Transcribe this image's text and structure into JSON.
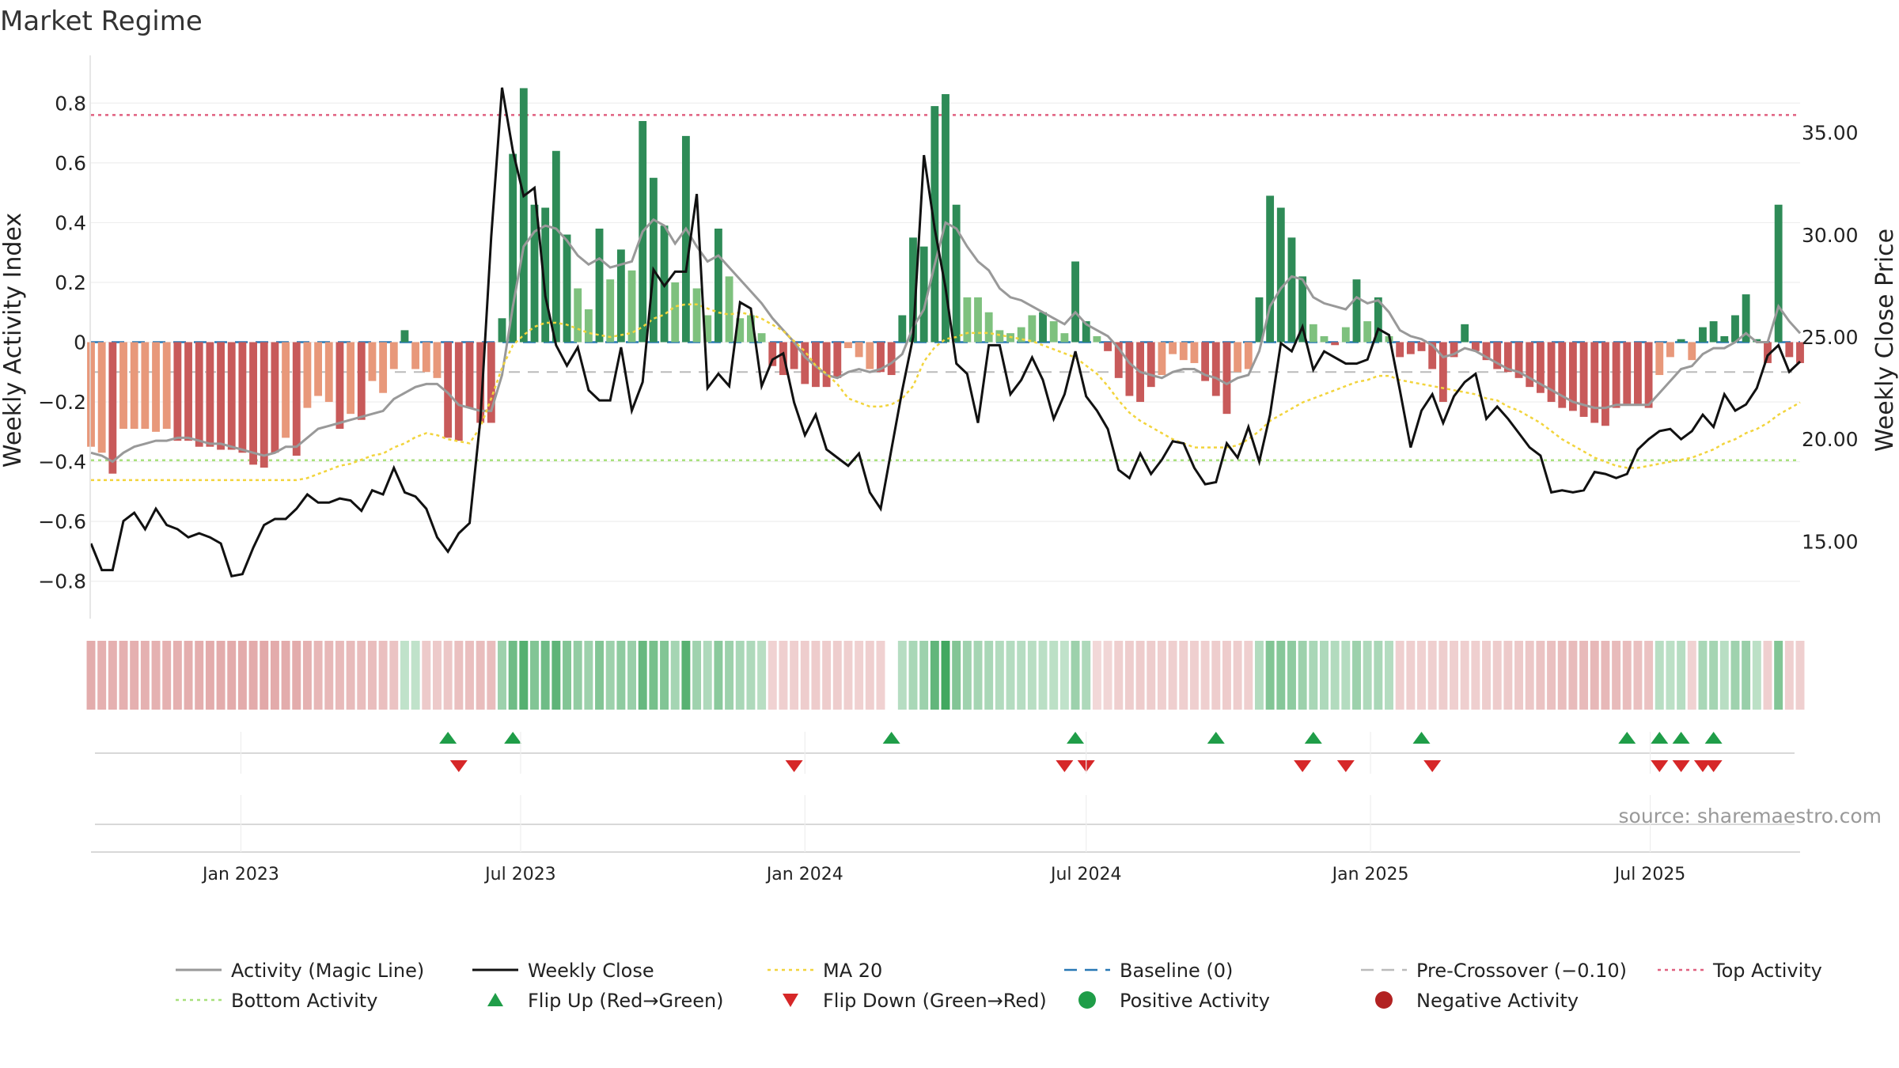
{
  "chart_data": {
    "type": "bar",
    "title": "Market Regime",
    "ylabel_left": "Weekly Activity Index",
    "ylabel_right": "Weekly Close Price",
    "ylim_left": [
      -0.92,
      0.92
    ],
    "ylim_right": [
      11.3,
      38.2
    ],
    "left_ticks": [
      "0.8",
      "0.6",
      "0.4",
      "0.2",
      "0",
      "−0.2",
      "−0.4",
      "−0.6",
      "−0.8"
    ],
    "right_ticks": [
      "35.00",
      "30.00",
      "25.00",
      "20.00",
      "15.00"
    ],
    "x_start": "2022-09-26",
    "x_step_days": 7,
    "x_tick_labels": [
      "Jan 2023",
      "Jul 2023",
      "Jan 2024",
      "Jul 2024",
      "Jan 2025",
      "Jul 2025"
    ],
    "x_tick_dates": [
      "2023-01-01",
      "2023-07-01",
      "2024-01-01",
      "2024-07-01",
      "2025-01-01",
      "2025-07-01"
    ],
    "grid": true,
    "reference_lines": {
      "top_activity": 0.76,
      "bottom_activity": -0.395,
      "baseline": 0,
      "pre_crossover": -0.1
    },
    "activity": [
      -0.35,
      -0.37,
      -0.44,
      -0.29,
      -0.29,
      -0.29,
      -0.3,
      -0.29,
      -0.33,
      -0.33,
      -0.35,
      -0.35,
      -0.36,
      -0.36,
      -0.37,
      -0.41,
      -0.42,
      -0.37,
      -0.32,
      -0.38,
      -0.22,
      -0.18,
      -0.2,
      -0.29,
      -0.24,
      -0.26,
      -0.13,
      -0.17,
      -0.09,
      0.04,
      -0.09,
      -0.1,
      -0.12,
      -0.32,
      -0.33,
      -0.22,
      -0.27,
      -0.27,
      0.08,
      0.63,
      0.85,
      0.46,
      0.45,
      0.64,
      0.36,
      0.18,
      0.11,
      0.38,
      0.21,
      0.31,
      0.24,
      0.74,
      0.55,
      0.39,
      0.2,
      0.69,
      0.18,
      0.09,
      0.38,
      0.22,
      0.08,
      0.09,
      0.03,
      -0.08,
      -0.11,
      -0.09,
      -0.14,
      -0.15,
      -0.15,
      -0.12,
      -0.02,
      -0.05,
      -0.09,
      -0.1,
      -0.11,
      0.09,
      0.35,
      0.32,
      0.79,
      0.83,
      0.46,
      0.15,
      0.15,
      0.1,
      0.04,
      0.03,
      0.05,
      0.09,
      0.1,
      0.07,
      0.03,
      0.27,
      0.07,
      0.02,
      -0.03,
      -0.12,
      -0.18,
      -0.2,
      -0.15,
      -0.11,
      -0.04,
      -0.06,
      -0.07,
      -0.13,
      -0.18,
      -0.24,
      -0.1,
      -0.09,
      0.15,
      0.49,
      0.45,
      0.35,
      0.22,
      0.06,
      0.02,
      -0.01,
      0.05,
      0.21,
      0.07,
      0.15,
      0.02,
      -0.05,
      -0.04,
      -0.03,
      -0.09,
      -0.2,
      -0.05,
      0.06,
      -0.03,
      -0.06,
      -0.09,
      -0.1,
      -0.12,
      -0.15,
      -0.17,
      -0.2,
      -0.22,
      -0.23,
      -0.25,
      -0.27,
      -0.28,
      -0.22,
      -0.21,
      -0.21,
      -0.22,
      -0.11,
      -0.05,
      0.01,
      -0.06,
      0.05,
      0.07,
      0.02,
      0.09,
      0.16,
      0.01,
      -0.07,
      0.46,
      -0.05,
      -0.07
    ],
    "weekly_close": [
      14.9,
      13.6,
      13.6,
      16.0,
      16.4,
      15.6,
      16.6,
      15.8,
      15.6,
      15.2,
      15.4,
      15.2,
      14.9,
      13.3,
      13.4,
      14.7,
      15.8,
      16.1,
      16.1,
      16.6,
      17.3,
      16.9,
      16.9,
      17.1,
      17.0,
      16.5,
      17.5,
      17.3,
      18.6,
      17.4,
      17.2,
      16.6,
      15.2,
      14.5,
      15.4,
      15.9,
      21.0,
      29.9,
      37.2,
      34.1,
      31.9,
      32.3,
      27.0,
      24.6,
      23.6,
      24.5,
      22.4,
      21.9,
      21.9,
      24.5,
      21.4,
      22.8,
      28.3,
      27.5,
      28.2,
      28.2,
      32.0,
      22.5,
      23.2,
      22.6,
      26.7,
      26.4,
      22.6,
      23.9,
      24.2,
      21.8,
      20.2,
      21.2,
      19.5,
      19.1,
      18.7,
      19.3,
      17.4,
      16.6,
      19.5,
      22.4,
      25.0,
      33.9,
      30.3,
      27.4,
      23.7,
      23.2,
      20.8,
      24.6,
      24.6,
      22.2,
      22.9,
      24.0,
      22.9,
      21.0,
      22.2,
      24.3,
      22.1,
      21.4,
      20.5,
      18.5,
      18.1,
      19.3,
      18.3,
      19.0,
      19.9,
      19.8,
      18.6,
      17.8,
      17.9,
      19.8,
      19.1,
      20.6,
      18.9,
      21.2,
      24.7,
      24.3,
      25.5,
      23.4,
      24.3,
      24.0,
      23.7,
      23.7,
      23.9,
      25.4,
      25.1,
      22.4,
      19.6,
      21.4,
      22.2,
      20.8,
      22.1,
      22.8,
      23.2,
      21.0,
      21.6,
      21.0,
      20.3,
      19.6,
      19.2,
      17.4,
      17.5,
      17.4,
      17.5,
      18.4,
      18.3,
      18.1,
      18.3,
      19.5,
      20.0,
      20.4,
      20.5,
      20.0,
      20.4,
      21.2,
      20.6,
      22.2,
      21.4,
      21.7,
      22.5,
      24.1,
      24.6,
      23.3,
      23.8
    ],
    "magic_line": [
      -0.37,
      -0.38,
      -0.4,
      -0.37,
      -0.35,
      -0.34,
      -0.33,
      -0.33,
      -0.32,
      -0.32,
      -0.33,
      -0.34,
      -0.34,
      -0.35,
      -0.36,
      -0.37,
      -0.38,
      -0.37,
      -0.35,
      -0.35,
      -0.32,
      -0.29,
      -0.28,
      -0.27,
      -0.26,
      -0.25,
      -0.24,
      -0.23,
      -0.19,
      -0.17,
      -0.15,
      -0.14,
      -0.14,
      -0.17,
      -0.21,
      -0.22,
      -0.23,
      -0.23,
      -0.11,
      0.12,
      0.32,
      0.37,
      0.39,
      0.38,
      0.34,
      0.29,
      0.26,
      0.28,
      0.25,
      0.26,
      0.27,
      0.37,
      0.41,
      0.39,
      0.33,
      0.38,
      0.32,
      0.27,
      0.29,
      0.25,
      0.21,
      0.17,
      0.13,
      0.08,
      0.04,
      0.0,
      -0.05,
      -0.08,
      -0.11,
      -0.12,
      -0.1,
      -0.09,
      -0.1,
      -0.09,
      -0.07,
      -0.04,
      0.05,
      0.11,
      0.26,
      0.4,
      0.38,
      0.32,
      0.27,
      0.24,
      0.18,
      0.15,
      0.14,
      0.12,
      0.1,
      0.08,
      0.06,
      0.1,
      0.06,
      0.04,
      0.02,
      -0.02,
      -0.07,
      -0.1,
      -0.11,
      -0.12,
      -0.1,
      -0.09,
      -0.09,
      -0.11,
      -0.12,
      -0.14,
      -0.12,
      -0.11,
      -0.03,
      0.12,
      0.18,
      0.22,
      0.21,
      0.15,
      0.13,
      0.12,
      0.11,
      0.15,
      0.13,
      0.14,
      0.1,
      0.04,
      0.02,
      0.01,
      -0.01,
      -0.05,
      -0.04,
      -0.02,
      -0.03,
      -0.05,
      -0.07,
      -0.09,
      -0.1,
      -0.12,
      -0.14,
      -0.16,
      -0.18,
      -0.2,
      -0.21,
      -0.22,
      -0.22,
      -0.21,
      -0.21,
      -0.21,
      -0.21,
      -0.17,
      -0.13,
      -0.09,
      -0.08,
      -0.04,
      -0.02,
      -0.02,
      0.0,
      0.03,
      0.0,
      0.0,
      0.12,
      0.07,
      0.03
    ],
    "ma20": [
      18.0,
      18.0,
      18.0,
      18.0,
      18.0,
      18.0,
      18.0,
      18.0,
      18.0,
      18.0,
      18.0,
      18.0,
      18.0,
      18.0,
      18.0,
      18.0,
      18.0,
      18.0,
      18.0,
      18.0,
      18.1,
      18.3,
      18.5,
      18.7,
      18.8,
      19.0,
      19.2,
      19.3,
      19.6,
      19.8,
      20.1,
      20.3,
      20.2,
      20.0,
      19.9,
      19.8,
      20.6,
      22.0,
      23.5,
      24.6,
      25.1,
      25.5,
      25.7,
      25.7,
      25.6,
      25.4,
      25.2,
      25.1,
      25.0,
      25.1,
      25.2,
      25.5,
      25.9,
      26.1,
      26.5,
      26.6,
      26.6,
      26.4,
      26.2,
      26.1,
      26.2,
      26.1,
      25.9,
      25.6,
      25.3,
      24.8,
      24.3,
      23.6,
      23.2,
      22.7,
      22.0,
      21.8,
      21.6,
      21.6,
      21.7,
      22.0,
      22.6,
      23.8,
      24.5,
      24.9,
      25.0,
      25.2,
      25.2,
      25.2,
      25.1,
      25.0,
      24.9,
      24.8,
      24.6,
      24.4,
      24.2,
      24.0,
      23.6,
      23.2,
      22.6,
      21.9,
      21.3,
      20.9,
      20.6,
      20.3,
      20.0,
      19.8,
      19.6,
      19.6,
      19.6,
      19.6,
      19.7,
      20.0,
      20.4,
      20.9,
      21.2,
      21.5,
      21.8,
      22.0,
      22.2,
      22.4,
      22.6,
      22.8,
      22.9,
      23.1,
      23.1,
      22.9,
      22.8,
      22.7,
      22.6,
      22.5,
      22.4,
      22.3,
      22.2,
      22.0,
      21.9,
      21.6,
      21.4,
      21.1,
      20.8,
      20.4,
      20.0,
      19.7,
      19.4,
      19.1,
      18.9,
      18.7,
      18.6,
      18.6,
      18.7,
      18.8,
      18.9,
      19.0,
      19.1,
      19.3,
      19.5,
      19.8,
      20.0,
      20.3,
      20.5,
      20.8,
      21.2,
      21.5,
      21.8
    ],
    "regime_strip": [
      -0.35,
      -0.33,
      -0.33,
      -0.33,
      -0.33,
      -0.32,
      -0.32,
      -0.32,
      -0.33,
      -0.34,
      -0.34,
      -0.35,
      -0.35,
      -0.36,
      -0.36,
      -0.37,
      -0.38,
      -0.37,
      -0.35,
      -0.35,
      -0.32,
      -0.28,
      -0.27,
      -0.26,
      -0.25,
      -0.24,
      -0.23,
      -0.22,
      -0.19,
      0.1,
      0.1,
      -0.14,
      -0.14,
      -0.17,
      -0.21,
      -0.22,
      -0.23,
      -0.23,
      0.3,
      0.55,
      0.7,
      0.45,
      0.55,
      0.65,
      0.45,
      0.35,
      0.3,
      0.45,
      0.3,
      0.38,
      0.32,
      0.6,
      0.5,
      0.45,
      0.25,
      0.68,
      0.28,
      0.2,
      0.4,
      0.3,
      0.22,
      0.2,
      0.14,
      -0.08,
      -0.1,
      -0.1,
      -0.12,
      -0.13,
      -0.13,
      -0.12,
      -0.1,
      -0.09,
      -0.1,
      -0.09,
      null,
      0.15,
      0.22,
      0.3,
      0.62,
      0.8,
      0.45,
      0.28,
      0.25,
      0.22,
      0.18,
      0.16,
      0.15,
      0.14,
      0.13,
      0.12,
      0.1,
      0.3,
      0.2,
      -0.05,
      -0.06,
      -0.1,
      -0.12,
      -0.13,
      -0.12,
      -0.11,
      -0.1,
      -0.1,
      -0.1,
      -0.11,
      -0.12,
      -0.13,
      -0.12,
      -0.1,
      0.18,
      0.45,
      0.42,
      0.38,
      0.3,
      0.22,
      0.2,
      0.18,
      0.17,
      0.3,
      0.2,
      0.22,
      0.16,
      -0.1,
      -0.1,
      -0.09,
      -0.1,
      -0.12,
      -0.1,
      -0.1,
      -0.11,
      -0.12,
      -0.13,
      -0.14,
      -0.15,
      -0.17,
      -0.19,
      -0.21,
      -0.23,
      -0.25,
      -0.26,
      -0.27,
      -0.27,
      -0.25,
      -0.23,
      -0.21,
      -0.2,
      0.14,
      0.12,
      0.15,
      -0.08,
      0.22,
      0.25,
      0.14,
      0.28,
      0.32,
      0.12,
      -0.1,
      0.45,
      -0.1,
      -0.1
    ],
    "flip_up_dates": [
      "2023-05-15",
      "2023-06-26",
      "2024-02-26",
      "2024-06-24",
      "2024-09-23",
      "2024-11-25",
      "2025-02-03",
      "2025-06-16",
      "2025-07-07",
      "2025-07-21",
      "2025-08-11"
    ],
    "flip_down_dates": [
      "2023-05-22",
      "2023-12-25",
      "2024-06-17",
      "2024-07-01",
      "2024-11-18",
      "2024-12-16",
      "2025-02-10",
      "2025-07-07",
      "2025-07-21",
      "2025-08-04",
      "2025-08-11"
    ],
    "colors": {
      "pos_dark": "#2e8b57",
      "pos_light": "#7ec17e",
      "neg_dark": "#c85a5a",
      "neg_light": "#e8987a",
      "magic_line": "#999999",
      "weekly_close": "#111111",
      "ma20": "#f2d43c",
      "baseline": "#2878b5",
      "pre_crossover": "#bbbbbb",
      "top_activity": "#e06080",
      "bottom_activity": "#a8e07c",
      "flip_up": "#1f9d48",
      "flip_down": "#d62728",
      "grid": "#eeeeee"
    }
  },
  "legend": [
    {
      "label": "Activity (Magic Line)",
      "marker": "line-solid",
      "color": "#999999"
    },
    {
      "label": "Weekly Close",
      "marker": "line-solid",
      "color": "#111111"
    },
    {
      "label": "MA 20",
      "marker": "line-dotted",
      "color": "#f2d43c"
    },
    {
      "label": "Baseline (0)",
      "marker": "line-dashed",
      "color": "#2878b5"
    },
    {
      "label": "Pre-Crossover (−0.10)",
      "marker": "line-dashed",
      "color": "#bbbbbb"
    },
    {
      "label": "Top Activity",
      "marker": "line-dotted",
      "color": "#e06080"
    },
    {
      "label": "Bottom Activity",
      "marker": "line-dotted",
      "color": "#a8e07c"
    },
    {
      "label": "Flip Up (Red→Green)",
      "marker": "triangle-up-icon",
      "color": "#1f9d48"
    },
    {
      "label": "Flip Down (Green→Red)",
      "marker": "triangle-down-icon",
      "color": "#d62728"
    },
    {
      "label": "Positive Activity",
      "marker": "circle-icon",
      "color": "#1f9d48"
    },
    {
      "label": "Negative Activity",
      "marker": "circle-icon",
      "color": "#b22222"
    }
  ],
  "source": "source: sharemaestro.com"
}
